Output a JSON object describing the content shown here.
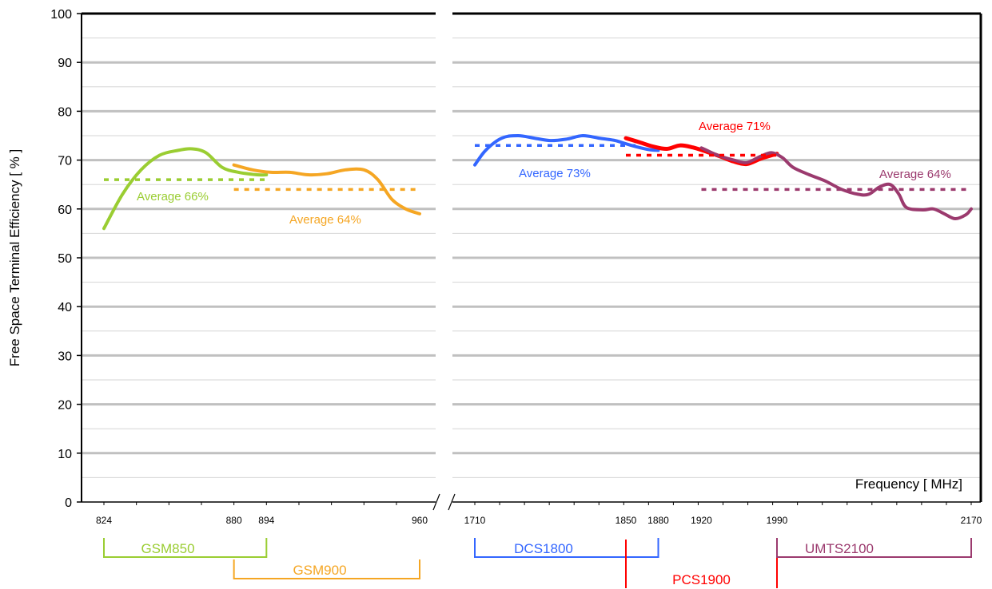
{
  "chart_data": {
    "type": "line",
    "ylabel": "Free Space Terminal Efficiency [ % ]",
    "xlabel": "Frequency [ MHz]",
    "ylim": [
      0,
      100
    ],
    "yticks": [
      0,
      10,
      20,
      30,
      40,
      50,
      60,
      70,
      80,
      90,
      100
    ],
    "grid": true,
    "axis_break": "between 960 and 1710 MHz",
    "xticks_left": [
      "824",
      "880",
      "894",
      "960"
    ],
    "xticks_right": [
      "1710",
      "1850",
      "1880",
      "1920",
      "1990",
      "2170"
    ],
    "colors": {
      "gsm850": "#9acd32",
      "gsm900": "#f5a623",
      "dcs1800": "#3366ff",
      "pcs1900": "#ff0000",
      "umts2100": "#9b3a6e"
    },
    "series": [
      {
        "band": "gsm850",
        "points": [
          [
            824,
            56
          ],
          [
            832,
            63
          ],
          [
            840,
            68
          ],
          [
            848,
            71
          ],
          [
            856,
            72
          ],
          [
            862,
            72.3
          ],
          [
            868,
            71.5
          ],
          [
            875,
            68.5
          ],
          [
            882,
            67.5
          ],
          [
            890,
            67
          ],
          [
            894,
            67
          ]
        ]
      },
      {
        "band": "gsm900",
        "points": [
          [
            880,
            69
          ],
          [
            888,
            68
          ],
          [
            896,
            67.5
          ],
          [
            904,
            67.5
          ],
          [
            912,
            67
          ],
          [
            920,
            67.2
          ],
          [
            928,
            68
          ],
          [
            936,
            68
          ],
          [
            942,
            66
          ],
          [
            948,
            62
          ],
          [
            954,
            60
          ],
          [
            960,
            59
          ]
        ]
      },
      {
        "band": "dcs1800",
        "points": [
          [
            1710,
            69
          ],
          [
            1720,
            72
          ],
          [
            1735,
            74.5
          ],
          [
            1750,
            75
          ],
          [
            1765,
            74.5
          ],
          [
            1780,
            74
          ],
          [
            1795,
            74.3
          ],
          [
            1810,
            75
          ],
          [
            1825,
            74.5
          ],
          [
            1840,
            74
          ],
          [
            1855,
            73
          ],
          [
            1870,
            72.2
          ],
          [
            1880,
            72
          ]
        ]
      },
      {
        "band": "pcs1900",
        "points": [
          [
            1850,
            74.5
          ],
          [
            1862,
            73.7
          ],
          [
            1875,
            72.8
          ],
          [
            1888,
            72.3
          ],
          [
            1900,
            73
          ],
          [
            1912,
            72.6
          ],
          [
            1925,
            71.7
          ],
          [
            1938,
            70.7
          ],
          [
            1950,
            69.7
          ],
          [
            1962,
            69.2
          ],
          [
            1975,
            70.3
          ],
          [
            1990,
            71.3
          ]
        ]
      },
      {
        "band": "umts2100",
        "points": [
          [
            1920,
            72.5
          ],
          [
            1935,
            71
          ],
          [
            1950,
            70
          ],
          [
            1962,
            69.5
          ],
          [
            1975,
            70.8
          ],
          [
            1985,
            71.5
          ],
          [
            1995,
            70.5
          ],
          [
            2005,
            68.5
          ],
          [
            2020,
            67
          ],
          [
            2035,
            65.7
          ],
          [
            2050,
            64
          ],
          [
            2065,
            63
          ],
          [
            2075,
            63
          ],
          [
            2085,
            64.5
          ],
          [
            2095,
            65
          ],
          [
            2103,
            63
          ],
          [
            2110,
            60.3
          ],
          [
            2125,
            59.8
          ],
          [
            2135,
            60
          ],
          [
            2145,
            59
          ],
          [
            2155,
            58
          ],
          [
            2165,
            58.8
          ],
          [
            2170,
            60
          ]
        ]
      }
    ],
    "averages": [
      {
        "band": "gsm850",
        "value": 66,
        "x_from": 824,
        "x_to": 894,
        "label": "Average 66%"
      },
      {
        "band": "gsm900",
        "value": 64,
        "x_from": 880,
        "x_to": 960,
        "label": "Average 64%"
      },
      {
        "band": "dcs1800",
        "value": 73,
        "x_from": 1710,
        "x_to": 1860,
        "label": "Average 73%"
      },
      {
        "band": "pcs1900",
        "value": 71,
        "x_from": 1850,
        "x_to": 1990,
        "label": "Average 71%"
      },
      {
        "band": "umts2100",
        "value": 64,
        "x_from": 1920,
        "x_to": 2170,
        "label": "Average 64%"
      }
    ],
    "bands": [
      {
        "band": "gsm850",
        "label": "GSM850",
        "from": 824,
        "to": 894
      },
      {
        "band": "gsm900",
        "label": "GSM900",
        "from": 880,
        "to": 960
      },
      {
        "band": "dcs1800",
        "label": "DCS1800",
        "from": 1710,
        "to": 1880
      },
      {
        "band": "pcs1900",
        "label": "PCS1900",
        "from": 1850,
        "to": 1990
      },
      {
        "band": "umts2100",
        "label": "UMTS2100",
        "from": 1990,
        "to": 2170
      }
    ]
  }
}
